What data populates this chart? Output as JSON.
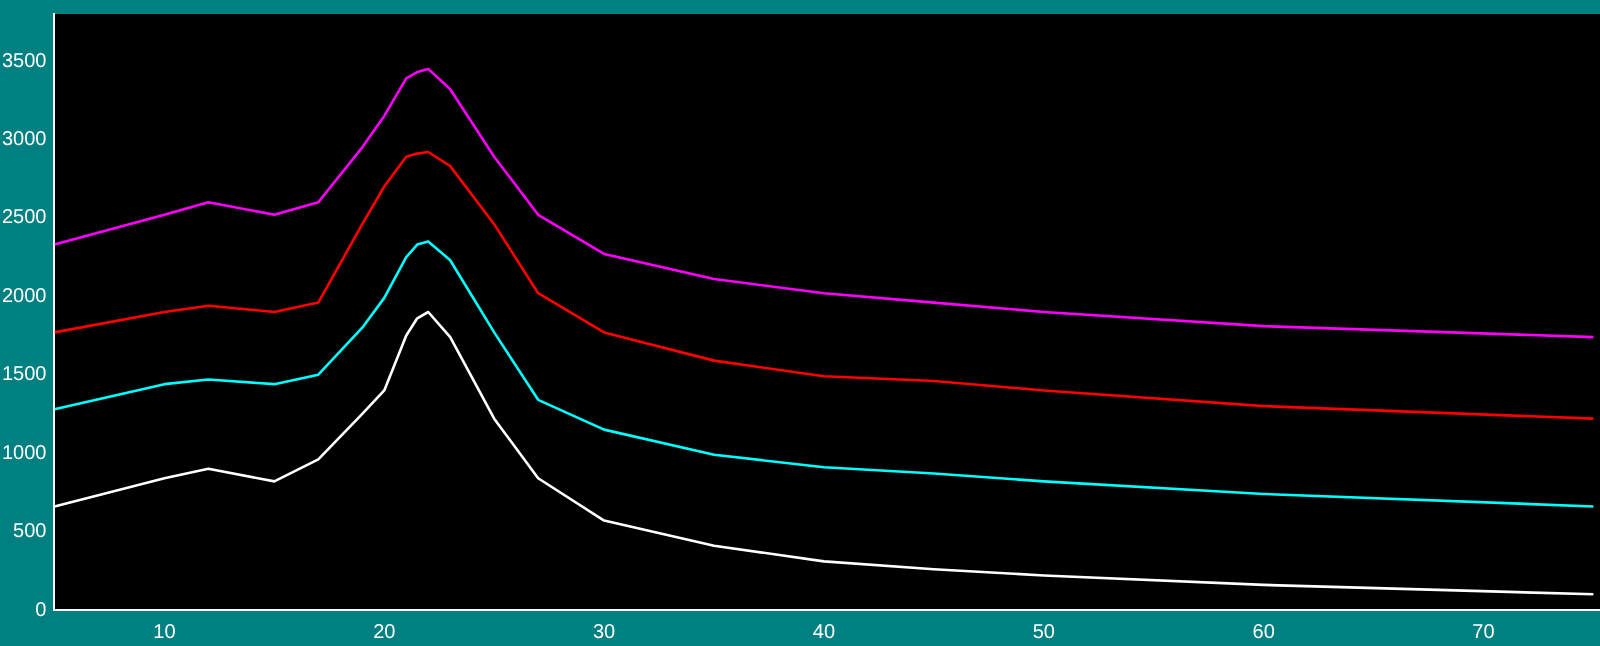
{
  "chart_data": {
    "type": "line",
    "x": [
      5,
      10,
      12,
      15,
      17,
      19,
      20,
      21,
      21.5,
      22,
      23,
      25,
      27,
      30,
      35,
      40,
      45,
      50,
      60,
      75
    ],
    "series": [
      {
        "color": "#ff00ff",
        "values": [
          2330,
          2520,
          2600,
          2520,
          2600,
          2950,
          3150,
          3390,
          3430,
          3450,
          3320,
          2890,
          2520,
          2270,
          2110,
          2020,
          1960,
          1900,
          1810,
          1740
        ]
      },
      {
        "color": "#ff0000",
        "values": [
          1770,
          1900,
          1940,
          1900,
          1960,
          2460,
          2700,
          2890,
          2910,
          2920,
          2830,
          2460,
          2020,
          1770,
          1590,
          1490,
          1460,
          1400,
          1300,
          1220
        ]
      },
      {
        "color": "#00ffff",
        "values": [
          1280,
          1440,
          1470,
          1440,
          1500,
          1800,
          1990,
          2250,
          2330,
          2350,
          2230,
          1770,
          1340,
          1150,
          990,
          910,
          870,
          820,
          740,
          660
        ]
      },
      {
        "color": "#ffffff",
        "values": [
          660,
          840,
          900,
          820,
          960,
          1250,
          1400,
          1750,
          1860,
          1900,
          1740,
          1220,
          840,
          570,
          410,
          310,
          260,
          220,
          160,
          100
        ]
      }
    ],
    "xlim": [
      5,
      75.3
    ],
    "xticks": [
      10,
      20,
      30,
      40,
      50,
      60,
      70
    ],
    "ylim": [
      0,
      3800
    ],
    "yticks": [
      0,
      500,
      1000,
      1500,
      2000,
      2500,
      3000,
      3500
    ],
    "grid": false,
    "legend": false,
    "marker": "none",
    "line_style": "solid"
  }
}
